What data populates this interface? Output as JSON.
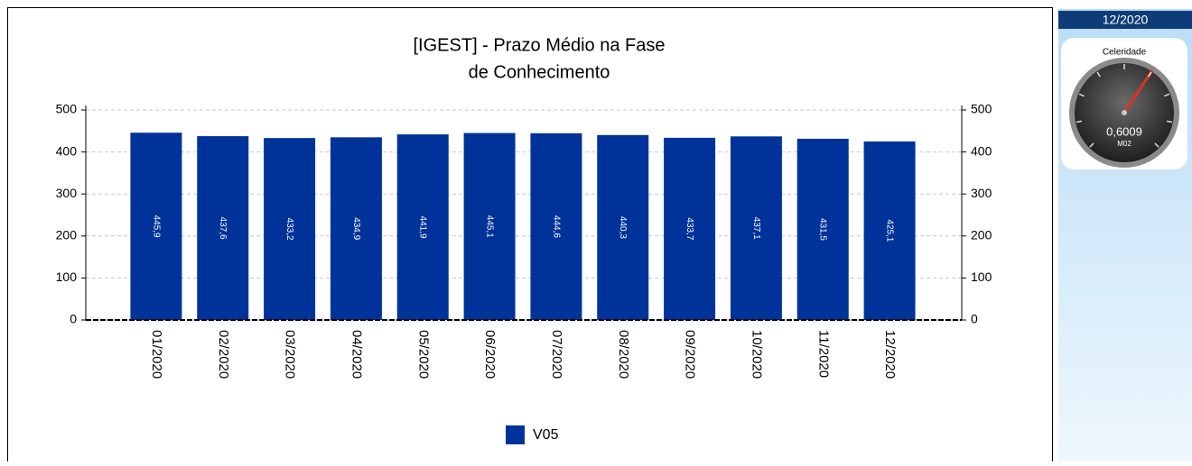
{
  "chart_data": {
    "type": "bar",
    "title": [
      "[IGEST]  - Prazo Médio na Fase",
      "de Conhecimento"
    ],
    "categories": [
      "01/2020",
      "02/2020",
      "03/2020",
      "04/2020",
      "05/2020",
      "06/2020",
      "07/2020",
      "08/2020",
      "09/2020",
      "10/2020",
      "11/2020",
      "12/2020"
    ],
    "series": [
      {
        "name": "V05",
        "color": "#003399",
        "values": [
          445.9,
          437.6,
          433.2,
          434.9,
          441.9,
          445.1,
          444.6,
          440.3,
          433.7,
          437.1,
          431.5,
          425.1
        ],
        "value_labels": [
          "445,9",
          "437,6",
          "433,2",
          "434,9",
          "441,9",
          "445,1",
          "444,6",
          "440,3",
          "433,7",
          "437,1",
          "431,5",
          "425,1"
        ]
      }
    ],
    "ylim": [
      0,
      500
    ],
    "yticks": [
      0,
      100,
      200,
      300,
      400,
      500
    ],
    "y2lim": [
      0,
      500
    ],
    "y2ticks": [
      0,
      100,
      200,
      300,
      400,
      500
    ],
    "grid": true,
    "legend": "bottom"
  },
  "side_panel": {
    "period": "12/2020",
    "gauge": {
      "title": "Celeridade",
      "value": "0,6009",
      "unit": "M02"
    }
  }
}
